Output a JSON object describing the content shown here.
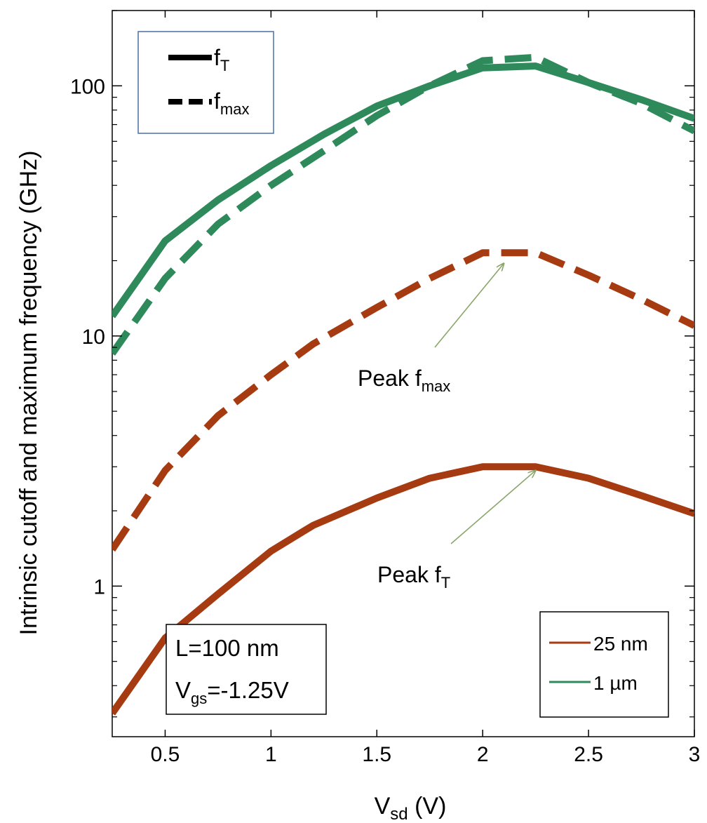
{
  "chart_data": {
    "type": "line",
    "xlabel": {
      "main": "V",
      "sub": "sd",
      "unit": " (V)"
    },
    "ylabel": "Intrinsic cutoff and maximum frequency (GHz)",
    "x_scale": "linear",
    "y_scale": "log",
    "xlim": [
      0.25,
      3.0
    ],
    "ylim": [
      0.25,
      200
    ],
    "x_ticks": [
      0.5,
      1,
      1.5,
      2,
      2.5,
      3
    ],
    "x_tick_labels": [
      "0.5",
      "1",
      "1.5",
      "2",
      "2.5",
      "3"
    ],
    "y_ticks": [
      1,
      10,
      100
    ],
    "y_tick_labels": [
      "1",
      "10",
      "100"
    ],
    "grid": false,
    "colors": {
      "red": "#A63A10",
      "green": "#2E8A5A"
    },
    "series": [
      {
        "name": "25 nm",
        "metric": "fT",
        "color": "red",
        "style": "solid",
        "x": [
          0.25,
          0.5,
          0.75,
          1.0,
          1.15,
          1.2,
          1.5,
          1.75,
          2.0,
          2.25,
          2.5,
          2.75,
          3.0
        ],
        "y": [
          0.31,
          0.62,
          0.93,
          1.38,
          1.65,
          1.75,
          2.25,
          2.7,
          3.0,
          3.0,
          2.7,
          2.3,
          1.95
        ]
      },
      {
        "name": "25 nm",
        "metric": "fmax",
        "color": "red",
        "style": "dashed",
        "x": [
          0.25,
          0.5,
          0.75,
          1.0,
          1.2,
          1.5,
          1.75,
          2.0,
          2.25,
          2.5,
          2.75,
          3.0
        ],
        "y": [
          1.4,
          2.9,
          4.8,
          7.0,
          9.3,
          13.0,
          17.0,
          21.5,
          21.5,
          17.5,
          14.0,
          11.0
        ]
      },
      {
        "name": "1 µm",
        "metric": "fT",
        "color": "green",
        "style": "solid",
        "x": [
          0.25,
          0.5,
          0.75,
          1.0,
          1.25,
          1.5,
          1.75,
          2.0,
          2.25,
          2.5,
          2.75,
          3.0
        ],
        "y": [
          12.0,
          24.0,
          35.0,
          48.0,
          64.0,
          83.0,
          100.0,
          118.0,
          120.0,
          103.0,
          88.0,
          74.0
        ]
      },
      {
        "name": "1 µm",
        "metric": "fmax",
        "color": "green",
        "style": "dashed",
        "x": [
          0.25,
          0.5,
          0.75,
          1.0,
          1.25,
          1.5,
          1.75,
          2.0,
          2.25,
          2.5,
          2.75,
          3.0
        ],
        "y": [
          8.5,
          17.0,
          28.0,
          40.0,
          55.0,
          76.0,
          100.0,
          126.0,
          130.0,
          103.0,
          85.0,
          66.0
        ]
      }
    ],
    "legend_style": {
      "position": "top-left",
      "entries": [
        {
          "style": "solid",
          "main": "f",
          "sub": "T"
        },
        {
          "style": "dashed",
          "main": "f",
          "sub": "max"
        }
      ]
    },
    "legend_color": {
      "position": "bottom-right",
      "entries": [
        {
          "color": "red",
          "label": "25 nm"
        },
        {
          "color": "green",
          "label": "1 µm"
        }
      ]
    },
    "annotations": [
      {
        "main": "Peak f",
        "sub": "max",
        "arrow_to": [
          2.1,
          19.5
        ]
      },
      {
        "main": "Peak f",
        "sub": "T",
        "arrow_to": [
          2.25,
          2.9
        ]
      }
    ],
    "info_box": {
      "position": "bottom-left",
      "line1": "L=100 nm",
      "line2": {
        "main": "V",
        "sub": "gs",
        "rest": "=-1.25V"
      }
    }
  }
}
